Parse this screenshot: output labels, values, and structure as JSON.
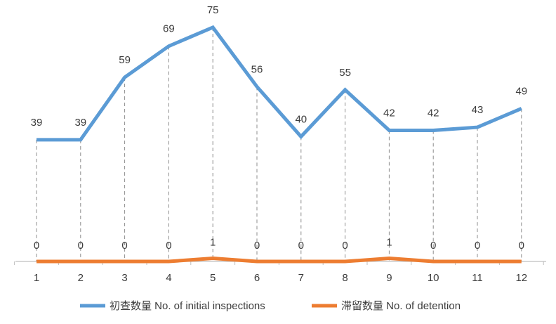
{
  "chart_data": {
    "type": "line",
    "x": [
      "1",
      "2",
      "3",
      "4",
      "5",
      "6",
      "7",
      "8",
      "9",
      "10",
      "11",
      "12"
    ],
    "ylim": [
      0,
      80
    ],
    "grid": false,
    "legend": "bottom",
    "title": "",
    "xlabel": "",
    "ylabel": "",
    "series": [
      {
        "name": "初查数量 No. of initial inspections",
        "color": "#5b9bd5",
        "values": [
          39,
          39,
          59,
          69,
          75,
          56,
          40,
          55,
          42,
          42,
          43,
          49
        ]
      },
      {
        "name": "滞留数量 No. of detention",
        "color": "#ed7d31",
        "values": [
          0,
          0,
          0,
          0,
          1,
          0,
          0,
          0,
          1,
          0,
          0,
          0
        ]
      }
    ]
  }
}
